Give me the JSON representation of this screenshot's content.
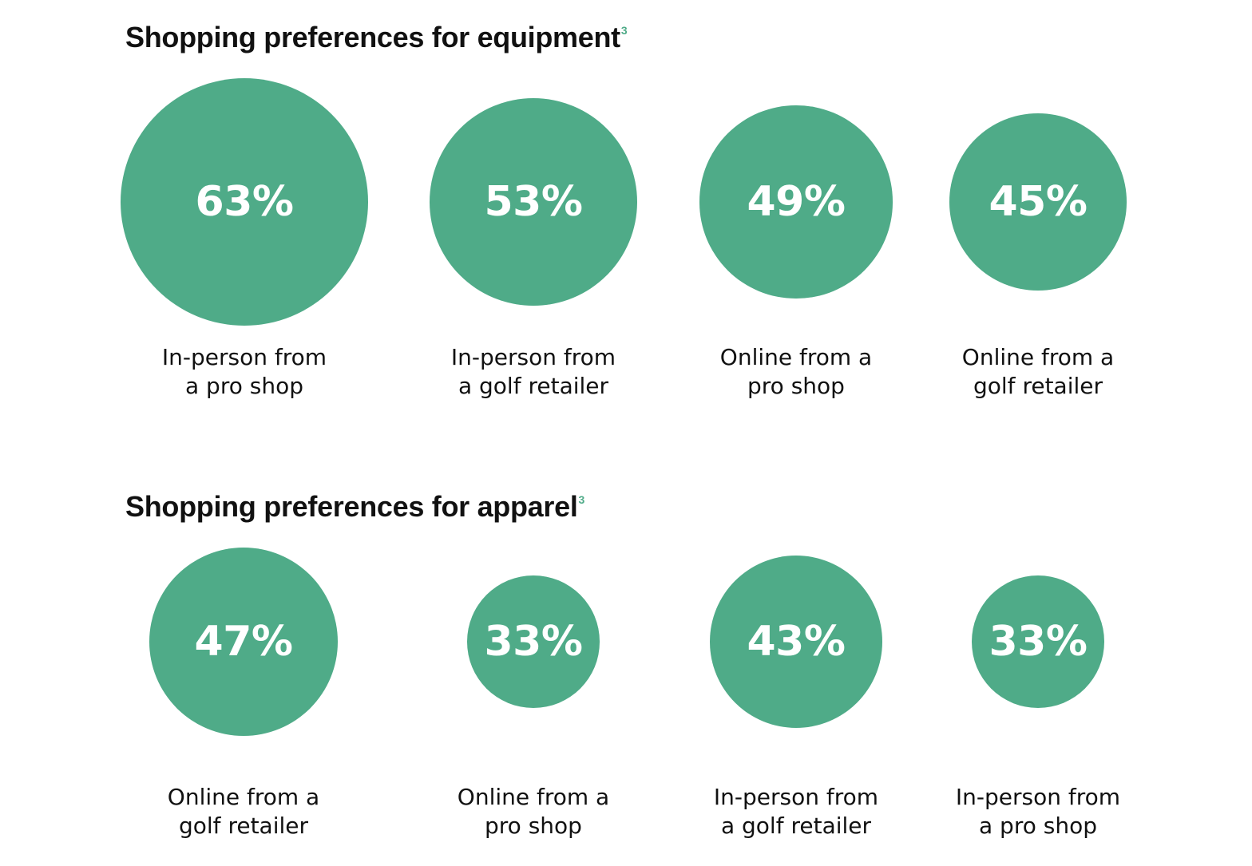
{
  "colors": {
    "bubble": "#4fab88",
    "superscript": "#4fab88",
    "value_text": "#ffffff",
    "text": "#111111"
  },
  "chart_data": [
    {
      "type": "bubble",
      "title": "Shopping preferences for equipment",
      "footnote": "3",
      "categories": [
        "In-person from a pro shop",
        "In-person from a golf retailer",
        "Online from a pro shop",
        "Online from a golf retailer"
      ],
      "values": [
        63,
        53,
        49,
        45
      ],
      "value_labels": [
        "63%",
        "53%",
        "49%",
        "45%"
      ],
      "caption_lines": [
        [
          "In-person from",
          "a pro shop"
        ],
        [
          "In-person from",
          "a golf retailer"
        ],
        [
          "Online from a",
          "pro shop"
        ],
        [
          "Online from a",
          "golf retailer"
        ]
      ]
    },
    {
      "type": "bubble",
      "title": "Shopping preferences for apparel",
      "footnote": "3",
      "categories": [
        "Online from a golf retailer",
        "Online from a pro shop",
        "In-person from a golf retailer",
        "In-person from a pro shop"
      ],
      "values": [
        47,
        33,
        43,
        33
      ],
      "value_labels": [
        "47%",
        "33%",
        "43%",
        "33%"
      ],
      "caption_lines": [
        [
          "Online from a",
          "golf retailer"
        ],
        [
          "Online from a",
          "pro shop"
        ],
        [
          "In-person from",
          "a golf retailer"
        ],
        [
          "In-person from",
          "a pro shop"
        ]
      ]
    }
  ]
}
